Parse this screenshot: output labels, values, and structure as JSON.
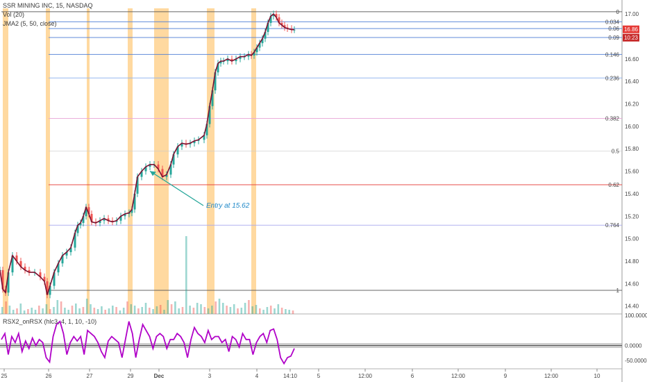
{
  "header": {
    "symbol_line": "SSR MINING INC, 15, NASDAQ",
    "vol_label": "Vol (20)",
    "jma_label": "JMA2 (5, 50, close)",
    "rsx_label": "RSX2_onRSX (hlc3, 4, 1, 10, -10)"
  },
  "colors": {
    "bullish": "#26a69a",
    "bearish": "#ef5350",
    "jma_line": "#7a1030",
    "session_band": "#ffcc80",
    "rsx_line": "#b000c8",
    "fib_blue": "#4f7fd6",
    "fib_red": "#e53935",
    "fib_pink": "#e9a6d8",
    "annotation": "#1e88c8",
    "arrow": "#26a69a"
  },
  "price_badge": {
    "price": "16.86",
    "countdown": "10:23"
  },
  "annotation": {
    "text": "Entry at 15.62",
    "price": 15.62
  },
  "chart_data": {
    "type": "line",
    "price_axis": {
      "ticks": [
        "17.00",
        "16.80",
        "16.60",
        "16.40",
        "16.20",
        "16.00",
        "15.80",
        "15.60",
        "15.40",
        "15.20",
        "15.00",
        "14.80",
        "14.60",
        "14.40"
      ],
      "ylim": [
        14.33,
        17.05
      ]
    },
    "time_axis": {
      "ticks": [
        {
          "label": "25",
          "bold": false
        },
        {
          "label": "26",
          "bold": false
        },
        {
          "label": "27",
          "bold": false
        },
        {
          "label": "29",
          "bold": false
        },
        {
          "label": "Dec",
          "bold": true
        },
        {
          "label": "3",
          "bold": false
        },
        {
          "label": "4",
          "bold": false
        },
        {
          "label": "14:10",
          "bold": false
        },
        {
          "label": "5",
          "bold": false
        },
        {
          "label": "12:00",
          "bold": false
        },
        {
          "label": "6",
          "bold": false
        },
        {
          "label": "12:00",
          "bold": false
        },
        {
          "label": "9",
          "bold": false
        },
        {
          "label": "12:00",
          "bold": false
        },
        {
          "label": "10",
          "bold": false
        }
      ]
    },
    "fib_levels": [
      {
        "label": "0",
        "price": 17.02,
        "color": "#555555"
      },
      {
        "label": "0.034",
        "price": 16.93,
        "color": "#4f7fd6"
      },
      {
        "label": "0.06",
        "price": 16.87,
        "color": "#4f7fd6"
      },
      {
        "label": "0.09",
        "price": 16.79,
        "color": "#4f7fd6"
      },
      {
        "label": "0.146",
        "price": 16.64,
        "color": "#4f7fd6"
      },
      {
        "label": "0.236",
        "price": 16.43,
        "color": "#8ab0ee"
      },
      {
        "label": "0.382",
        "price": 16.07,
        "color": "#e9a6d8"
      },
      {
        "label": "0.5",
        "price": 15.78,
        "color": "#c9c9c9"
      },
      {
        "label": "0.62",
        "price": 15.48,
        "color": "#e53935"
      },
      {
        "label": "0.764",
        "price": 15.12,
        "color": "#a9a9ee"
      },
      {
        "label": "1",
        "price": 14.54,
        "color": "#555555"
      }
    ],
    "price_path": [
      [
        0,
        14.72
      ],
      [
        4,
        14.55
      ],
      [
        8,
        14.52
      ],
      [
        12,
        14.7
      ],
      [
        18,
        14.85
      ],
      [
        24,
        14.8
      ],
      [
        30,
        14.75
      ],
      [
        36,
        14.72
      ],
      [
        42,
        14.7
      ],
      [
        50,
        14.7
      ],
      [
        58,
        14.66
      ],
      [
        64,
        14.62
      ],
      [
        68,
        14.5
      ],
      [
        72,
        14.58
      ],
      [
        78,
        14.7
      ],
      [
        84,
        14.78
      ],
      [
        90,
        14.85
      ],
      [
        96,
        14.88
      ],
      [
        102,
        14.92
      ],
      [
        108,
        15.05
      ],
      [
        112,
        15.12
      ],
      [
        116,
        15.14
      ],
      [
        120,
        15.2
      ],
      [
        124,
        15.28
      ],
      [
        128,
        15.22
      ],
      [
        132,
        15.15
      ],
      [
        138,
        15.14
      ],
      [
        144,
        15.16
      ],
      [
        150,
        15.18
      ],
      [
        156,
        15.16
      ],
      [
        162,
        15.15
      ],
      [
        168,
        15.16
      ],
      [
        174,
        15.2
      ],
      [
        180,
        15.22
      ],
      [
        186,
        15.23
      ],
      [
        190,
        15.26
      ],
      [
        194,
        15.4
      ],
      [
        198,
        15.55
      ],
      [
        204,
        15.6
      ],
      [
        210,
        15.64
      ],
      [
        216,
        15.66
      ],
      [
        222,
        15.66
      ],
      [
        228,
        15.62
      ],
      [
        234,
        15.55
      ],
      [
        240,
        15.57
      ],
      [
        246,
        15.66
      ],
      [
        250,
        15.75
      ],
      [
        256,
        15.82
      ],
      [
        262,
        15.85
      ],
      [
        268,
        15.84
      ],
      [
        274,
        15.85
      ],
      [
        280,
        15.87
      ],
      [
        286,
        15.88
      ],
      [
        294,
        15.92
      ],
      [
        298,
        16.02
      ],
      [
        302,
        16.18
      ],
      [
        306,
        16.32
      ],
      [
        310,
        16.48
      ],
      [
        314,
        16.56
      ],
      [
        318,
        16.58
      ],
      [
        322,
        16.58
      ],
      [
        328,
        16.6
      ],
      [
        334,
        16.58
      ],
      [
        340,
        16.6
      ],
      [
        346,
        16.62
      ],
      [
        352,
        16.62
      ],
      [
        358,
        16.64
      ],
      [
        362,
        16.63
      ],
      [
        366,
        16.66
      ],
      [
        370,
        16.7
      ],
      [
        374,
        16.74
      ],
      [
        378,
        16.78
      ],
      [
        382,
        16.84
      ],
      [
        386,
        16.92
      ],
      [
        390,
        16.98
      ],
      [
        394,
        17.0
      ],
      [
        398,
        16.97
      ],
      [
        402,
        16.92
      ],
      [
        406,
        16.9
      ],
      [
        410,
        16.88
      ],
      [
        414,
        16.87
      ],
      [
        420,
        16.86
      ],
      [
        424,
        16.86
      ]
    ],
    "rsx": {
      "ticks": [
        "100.0000",
        "0.0000",
        "-50.0000"
      ],
      "ylim": [
        -75,
        105
      ],
      "zero_band": [
        -8,
        8
      ],
      "values": [
        20,
        40,
        -30,
        30,
        10,
        40,
        -20,
        15,
        -10,
        25,
        0,
        20,
        10,
        -40,
        -55,
        30,
        70,
        80,
        40,
        -30,
        10,
        30,
        15,
        30,
        -30,
        50,
        40,
        30,
        10,
        -20,
        -40,
        15,
        30,
        20,
        10,
        -40,
        20,
        80,
        40,
        -40,
        20,
        70,
        50,
        30,
        -10,
        30,
        40,
        30,
        -10,
        20,
        20,
        40,
        30,
        10,
        -40,
        20,
        60,
        40,
        30,
        10,
        50,
        20,
        30,
        30,
        10,
        20,
        -20,
        30,
        20,
        -5,
        40,
        20,
        20,
        -30,
        10,
        30,
        40,
        10,
        50,
        55,
        20,
        -40,
        -60,
        -40,
        -35,
        -10
      ]
    },
    "volume": {
      "ylim": [
        0,
        110
      ],
      "values": [
        10,
        18,
        12,
        6,
        8,
        15,
        5,
        7,
        9,
        6,
        12,
        8,
        14,
        7,
        10,
        20,
        18,
        9,
        6,
        12,
        15,
        8,
        10,
        22,
        14,
        9,
        7,
        11,
        6,
        8,
        12,
        10,
        5,
        9,
        18,
        14,
        12,
        8,
        10,
        16,
        9,
        7,
        11,
        13,
        6,
        20,
        14,
        18,
        8,
        10,
        112,
        12,
        9,
        16,
        14,
        10,
        8,
        12,
        18,
        22,
        16,
        12,
        10,
        14,
        8,
        9,
        16,
        20,
        11,
        13,
        8,
        6,
        10,
        12,
        8,
        14,
        9,
        7,
        6,
        5
      ]
    }
  }
}
